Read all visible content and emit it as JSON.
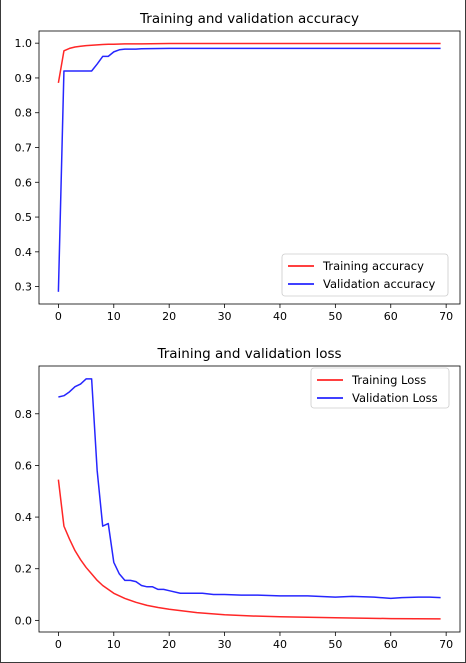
{
  "chart_data": [
    {
      "type": "line",
      "title": "Training and validation accuracy",
      "xlabel": "",
      "ylabel": "",
      "xlim": [
        -3.5,
        72.5
      ],
      "ylim": [
        0.25,
        1.035
      ],
      "xticks": [
        0,
        10,
        20,
        30,
        40,
        50,
        60,
        70
      ],
      "yticks": [
        0.3,
        0.4,
        0.5,
        0.6,
        0.7,
        0.8,
        0.9,
        1.0
      ],
      "ytick_labels": [
        "0.3",
        "0.4",
        "0.5",
        "0.6",
        "0.7",
        "0.8",
        "0.9",
        "1.0"
      ],
      "grid": false,
      "legend": "bottom-right",
      "series": [
        {
          "name": "Training accuracy",
          "color": "#ff0000",
          "x": [
            0,
            1,
            2,
            3,
            4,
            5,
            6,
            7,
            8,
            9,
            10,
            12,
            15,
            20,
            25,
            30,
            40,
            50,
            60,
            69
          ],
          "y": [
            0.886,
            0.978,
            0.985,
            0.989,
            0.991,
            0.993,
            0.994,
            0.995,
            0.996,
            0.997,
            0.997,
            0.998,
            0.998,
            0.999,
            0.999,
            0.999,
            0.999,
            0.999,
            0.999,
            0.999
          ]
        },
        {
          "name": "Validation accuracy",
          "color": "#0000ff",
          "x": [
            0,
            1,
            2,
            3,
            4,
            5,
            6,
            7,
            8,
            9,
            10,
            11,
            12,
            13,
            14,
            15,
            20,
            25,
            30,
            35,
            40,
            45,
            50,
            55,
            60,
            65,
            69
          ],
          "y": [
            0.285,
            0.92,
            0.92,
            0.92,
            0.92,
            0.92,
            0.92,
            0.94,
            0.962,
            0.962,
            0.975,
            0.981,
            0.983,
            0.983,
            0.983,
            0.984,
            0.985,
            0.985,
            0.985,
            0.985,
            0.985,
            0.985,
            0.985,
            0.985,
            0.985,
            0.985,
            0.985
          ]
        }
      ]
    },
    {
      "type": "line",
      "title": "Training and validation loss",
      "xlabel": "",
      "ylabel": "",
      "xlim": [
        -3.5,
        72.5
      ],
      "ylim": [
        -0.045,
        0.985
      ],
      "xticks": [
        0,
        10,
        20,
        30,
        40,
        50,
        60,
        70
      ],
      "yticks": [
        0.0,
        0.2,
        0.4,
        0.6,
        0.8
      ],
      "ytick_labels": [
        "0.0",
        "0.2",
        "0.4",
        "0.6",
        "0.8"
      ],
      "grid": false,
      "legend": "top-right",
      "series": [
        {
          "name": "Training Loss",
          "color": "#ff0000",
          "x": [
            0,
            1,
            2,
            3,
            4,
            5,
            6,
            7,
            8,
            9,
            10,
            12,
            14,
            16,
            18,
            20,
            25,
            30,
            35,
            40,
            50,
            60,
            69
          ],
          "y": [
            0.545,
            0.365,
            0.315,
            0.27,
            0.235,
            0.205,
            0.18,
            0.155,
            0.135,
            0.12,
            0.105,
            0.085,
            0.07,
            0.058,
            0.05,
            0.043,
            0.03,
            0.022,
            0.017,
            0.014,
            0.01,
            0.007,
            0.006
          ]
        },
        {
          "name": "Validation Loss",
          "color": "#0000ff",
          "x": [
            0,
            1,
            2,
            3,
            4,
            5,
            6,
            7,
            8,
            9,
            10,
            11,
            12,
            13,
            14,
            15,
            16,
            17,
            18,
            19,
            20,
            22,
            24,
            26,
            28,
            30,
            33,
            36,
            40,
            45,
            50,
            53,
            57,
            60,
            62,
            65,
            67,
            69
          ],
          "y": [
            0.865,
            0.87,
            0.885,
            0.905,
            0.915,
            0.935,
            0.935,
            0.58,
            0.365,
            0.375,
            0.225,
            0.18,
            0.155,
            0.155,
            0.15,
            0.135,
            0.13,
            0.13,
            0.12,
            0.12,
            0.115,
            0.105,
            0.105,
            0.105,
            0.1,
            0.1,
            0.098,
            0.098,
            0.095,
            0.095,
            0.09,
            0.093,
            0.09,
            0.085,
            0.088,
            0.09,
            0.09,
            0.088
          ]
        }
      ]
    }
  ]
}
